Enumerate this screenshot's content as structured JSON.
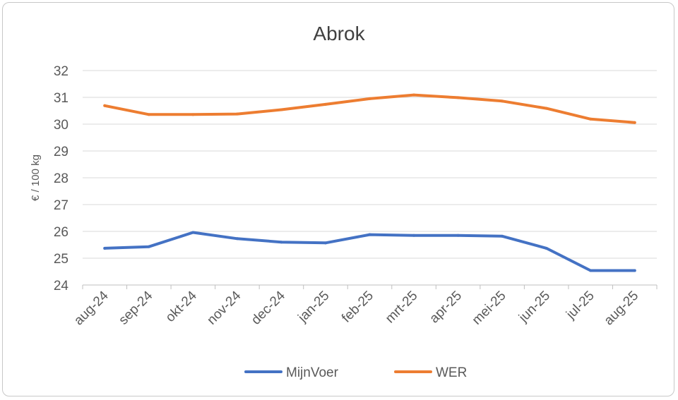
{
  "chart_data": {
    "type": "line",
    "title": "Abrok",
    "xlabel": "",
    "ylabel": "€ / 100 kg",
    "ylim": [
      24,
      32
    ],
    "yticks": [
      24,
      25,
      26,
      27,
      28,
      29,
      30,
      31,
      32
    ],
    "grid": true,
    "legend_position": "bottom",
    "categories": [
      "aug-24",
      "sep-24",
      "okt-24",
      "nov-24",
      "dec-24",
      "jan-25",
      "feb-25",
      "mrt-25",
      "apr-25",
      "mei-25",
      "jun-25",
      "jul-25",
      "aug-25"
    ],
    "series": [
      {
        "name": "MijnVoer",
        "color": "#4472C4",
        "values": [
          25.37,
          25.43,
          25.96,
          25.73,
          25.6,
          25.57,
          25.88,
          25.85,
          25.85,
          25.82,
          25.37,
          24.54,
          24.54
        ]
      },
      {
        "name": "WER",
        "color": "#ED7D31",
        "values": [
          30.69,
          30.36,
          30.36,
          30.38,
          30.54,
          30.74,
          30.95,
          31.09,
          30.99,
          30.86,
          30.59,
          30.19,
          30.06
        ]
      }
    ]
  }
}
